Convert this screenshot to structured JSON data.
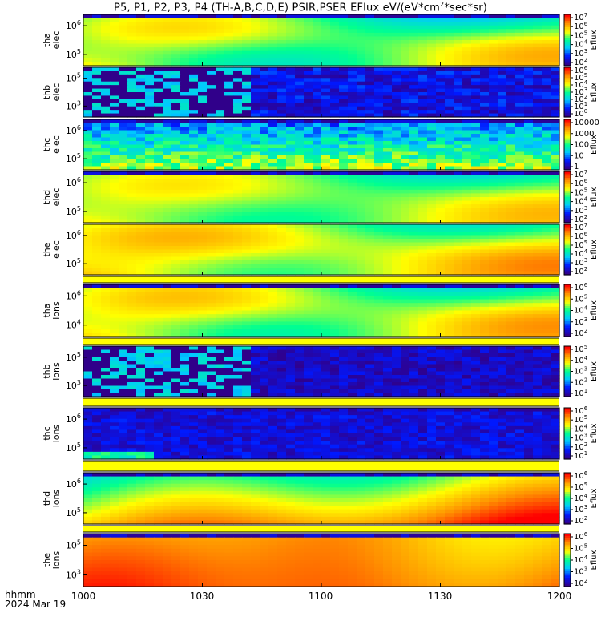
{
  "title": {
    "prefix": "P5, P1, P2, P3, P4 (TH-A,B,C,D,E) PSIR,PSER EFlux eV/(eV*cm",
    "sup": "2",
    "suffix": "*sec*sr)"
  },
  "x_axis": {
    "ticks": [
      "1000",
      "1030",
      "1100",
      "1130",
      "1200"
    ],
    "label_line1": "hhmm",
    "label_line2": "2024 Mar 19"
  },
  "colorbar_label": "Eflux",
  "colorscale": [
    "#30008a",
    "#0018ff",
    "#00c8ff",
    "#00ff90",
    "#ffff00",
    "#ff9000",
    "#ff0000"
  ],
  "chart_data": [
    {
      "type": "heatmap",
      "name_line1": "tha",
      "name_line2": "elec",
      "y_ticks": [
        {
          "base": "10",
          "exp": "6"
        },
        {
          "base": "10",
          "exp": "5"
        }
      ],
      "colorbar_ticks": [
        {
          "base": "10",
          "exp": "7"
        },
        {
          "base": "10",
          "exp": "6"
        },
        {
          "base": "10",
          "exp": "5"
        },
        {
          "base": "10",
          "exp": "4"
        },
        {
          "base": "10",
          "exp": "3"
        },
        {
          "base": "10",
          "exp": "2"
        }
      ],
      "pattern": "smooth",
      "level": 0.62,
      "contrast": 0.22,
      "top_noise": true
    },
    {
      "type": "heatmap",
      "name_line1": "thb",
      "name_line2": "elec",
      "y_ticks": [
        {
          "base": "10",
          "exp": "5"
        },
        {
          "base": "10",
          "exp": "3"
        }
      ],
      "colorbar_ticks": [
        {
          "base": "10",
          "exp": "6"
        },
        {
          "base": "10",
          "exp": "5"
        },
        {
          "base": "10",
          "exp": "4"
        },
        {
          "base": "10",
          "exp": "3"
        },
        {
          "base": "10",
          "exp": "2"
        },
        {
          "base": "10",
          "exp": "1"
        },
        {
          "base": "10",
          "exp": "0"
        }
      ],
      "pattern": "speckle",
      "level": 0.12,
      "contrast": 0.2,
      "top_noise": false
    },
    {
      "type": "heatmap",
      "name_line1": "thc",
      "name_line2": "elec",
      "y_ticks": [
        {
          "base": "10",
          "exp": "6"
        },
        {
          "base": "10",
          "exp": "5"
        }
      ],
      "colorbar_ticks": [
        {
          "base": "10000",
          "exp": ""
        },
        {
          "base": "1000",
          "exp": ""
        },
        {
          "base": "100",
          "exp": ""
        },
        {
          "base": "10",
          "exp": ""
        },
        {
          "base": "1",
          "exp": ""
        }
      ],
      "pattern": "noise_gradient",
      "level": 0.25,
      "contrast": 0.25,
      "top_noise": true
    },
    {
      "type": "heatmap",
      "name_line1": "thd",
      "name_line2": "elec",
      "y_ticks": [
        {
          "base": "10",
          "exp": "6"
        },
        {
          "base": "10",
          "exp": "5"
        }
      ],
      "colorbar_ticks": [
        {
          "base": "10",
          "exp": "7"
        },
        {
          "base": "10",
          "exp": "6"
        },
        {
          "base": "10",
          "exp": "5"
        },
        {
          "base": "10",
          "exp": "4"
        },
        {
          "base": "10",
          "exp": "3"
        },
        {
          "base": "10",
          "exp": "2"
        }
      ],
      "pattern": "smooth",
      "level": 0.64,
      "contrast": 0.18,
      "top_noise": true
    },
    {
      "type": "heatmap",
      "name_line1": "the",
      "name_line2": "elec",
      "y_ticks": [
        {
          "base": "10",
          "exp": "6"
        },
        {
          "base": "10",
          "exp": "5"
        }
      ],
      "colorbar_ticks": [
        {
          "base": "10",
          "exp": "7"
        },
        {
          "base": "10",
          "exp": "6"
        },
        {
          "base": "10",
          "exp": "5"
        },
        {
          "base": "10",
          "exp": "4"
        },
        {
          "base": "10",
          "exp": "3"
        },
        {
          "base": "10",
          "exp": "2"
        }
      ],
      "pattern": "smooth",
      "level": 0.7,
      "contrast": 0.2,
      "top_noise": false
    },
    {
      "type": "heatmap",
      "name_line1": "tha",
      "name_line2": "ions",
      "y_ticks": [
        {
          "base": "10",
          "exp": "6"
        },
        {
          "base": "10",
          "exp": "4"
        }
      ],
      "colorbar_ticks": [
        {
          "base": "10",
          "exp": "6"
        },
        {
          "base": "10",
          "exp": "5"
        },
        {
          "base": "10",
          "exp": "4"
        },
        {
          "base": "10",
          "exp": "3"
        },
        {
          "base": "10",
          "exp": "2"
        }
      ],
      "pattern": "smooth",
      "level": 0.66,
      "contrast": 0.22,
      "top_noise": true
    },
    {
      "type": "heatmap",
      "name_line1": "thb",
      "name_line2": "ions",
      "y_ticks": [
        {
          "base": "10",
          "exp": "5"
        },
        {
          "base": "10",
          "exp": "3"
        }
      ],
      "colorbar_ticks": [
        {
          "base": "10",
          "exp": "5"
        },
        {
          "base": "10",
          "exp": "4"
        },
        {
          "base": "10",
          "exp": "3"
        },
        {
          "base": "10",
          "exp": "2"
        },
        {
          "base": "10",
          "exp": "1"
        }
      ],
      "pattern": "speckle",
      "level": 0.08,
      "contrast": 0.15,
      "top_noise": false
    },
    {
      "type": "heatmap",
      "name_line1": "thc",
      "name_line2": "ions",
      "y_ticks": [
        {
          "base": "10",
          "exp": "6"
        },
        {
          "base": "10",
          "exp": "5"
        }
      ],
      "colorbar_ticks": [
        {
          "base": "10",
          "exp": "6"
        },
        {
          "base": "10",
          "exp": "5"
        },
        {
          "base": "10",
          "exp": "4"
        },
        {
          "base": "10",
          "exp": "3"
        },
        {
          "base": "10",
          "exp": "2"
        },
        {
          "base": "10",
          "exp": "1"
        }
      ],
      "pattern": "noise",
      "level": 0.08,
      "contrast": 0.15,
      "top_noise": true
    },
    {
      "type": "heatmap",
      "name_line1": "thd",
      "name_line2": "ions",
      "y_ticks": [
        {
          "base": "10",
          "exp": "6"
        },
        {
          "base": "10",
          "exp": "5"
        }
      ],
      "colorbar_ticks": [
        {
          "base": "10",
          "exp": "6"
        },
        {
          "base": "10",
          "exp": "5"
        },
        {
          "base": "10",
          "exp": "4"
        },
        {
          "base": "10",
          "exp": "3"
        },
        {
          "base": "10",
          "exp": "2"
        }
      ],
      "pattern": "rising",
      "level": 0.72,
      "contrast": 0.22,
      "top_noise": true
    },
    {
      "type": "heatmap",
      "name_line1": "the",
      "name_line2": "ions",
      "y_ticks": [
        {
          "base": "10",
          "exp": "5"
        },
        {
          "base": "10",
          "exp": "3"
        }
      ],
      "colorbar_ticks": [
        {
          "base": "10",
          "exp": "6"
        },
        {
          "base": "10",
          "exp": "5"
        },
        {
          "base": "10",
          "exp": "4"
        },
        {
          "base": "10",
          "exp": "3"
        },
        {
          "base": "10",
          "exp": "2"
        }
      ],
      "pattern": "hot",
      "level": 0.88,
      "contrast": 0.12,
      "top_noise": true
    }
  ]
}
